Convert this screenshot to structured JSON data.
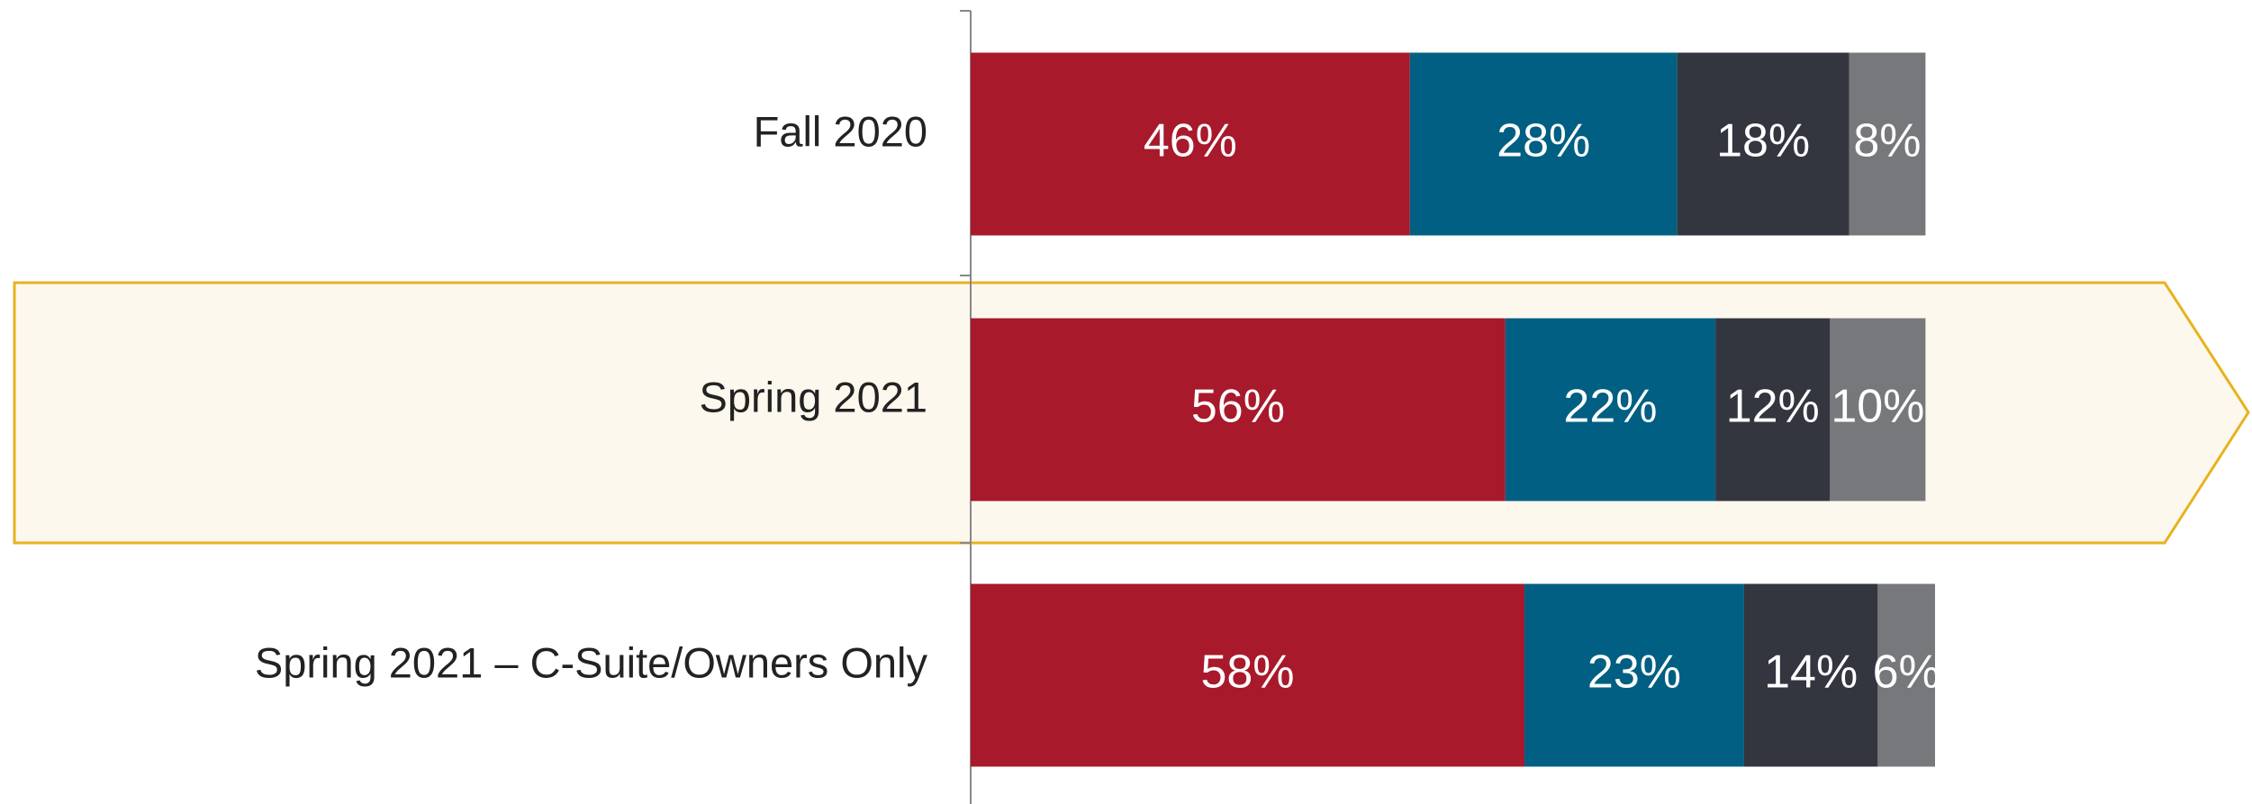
{
  "chart_data": {
    "type": "stacked-bar-horizontal",
    "categories": [
      "Fall 2020",
      "Spring 2021",
      "Spring 2021 – C-Suite/Owners Only"
    ],
    "series": [
      {
        "color": "#a8192b",
        "values": [
          46,
          56,
          58
        ],
        "value_labels": [
          "46%",
          "56%",
          "58%"
        ]
      },
      {
        "color": "#005f82",
        "values": [
          28,
          22,
          23
        ],
        "value_labels": [
          "28%",
          "22%",
          "23%"
        ]
      },
      {
        "color": "#33353f",
        "values": [
          18,
          12,
          14
        ],
        "value_labels": [
          "18%",
          "12%",
          "14%"
        ]
      },
      {
        "color": "#77787c",
        "values": [
          8,
          10,
          6
        ],
        "value_labels": [
          "8%",
          "10%",
          "6%"
        ]
      }
    ]
  }
}
